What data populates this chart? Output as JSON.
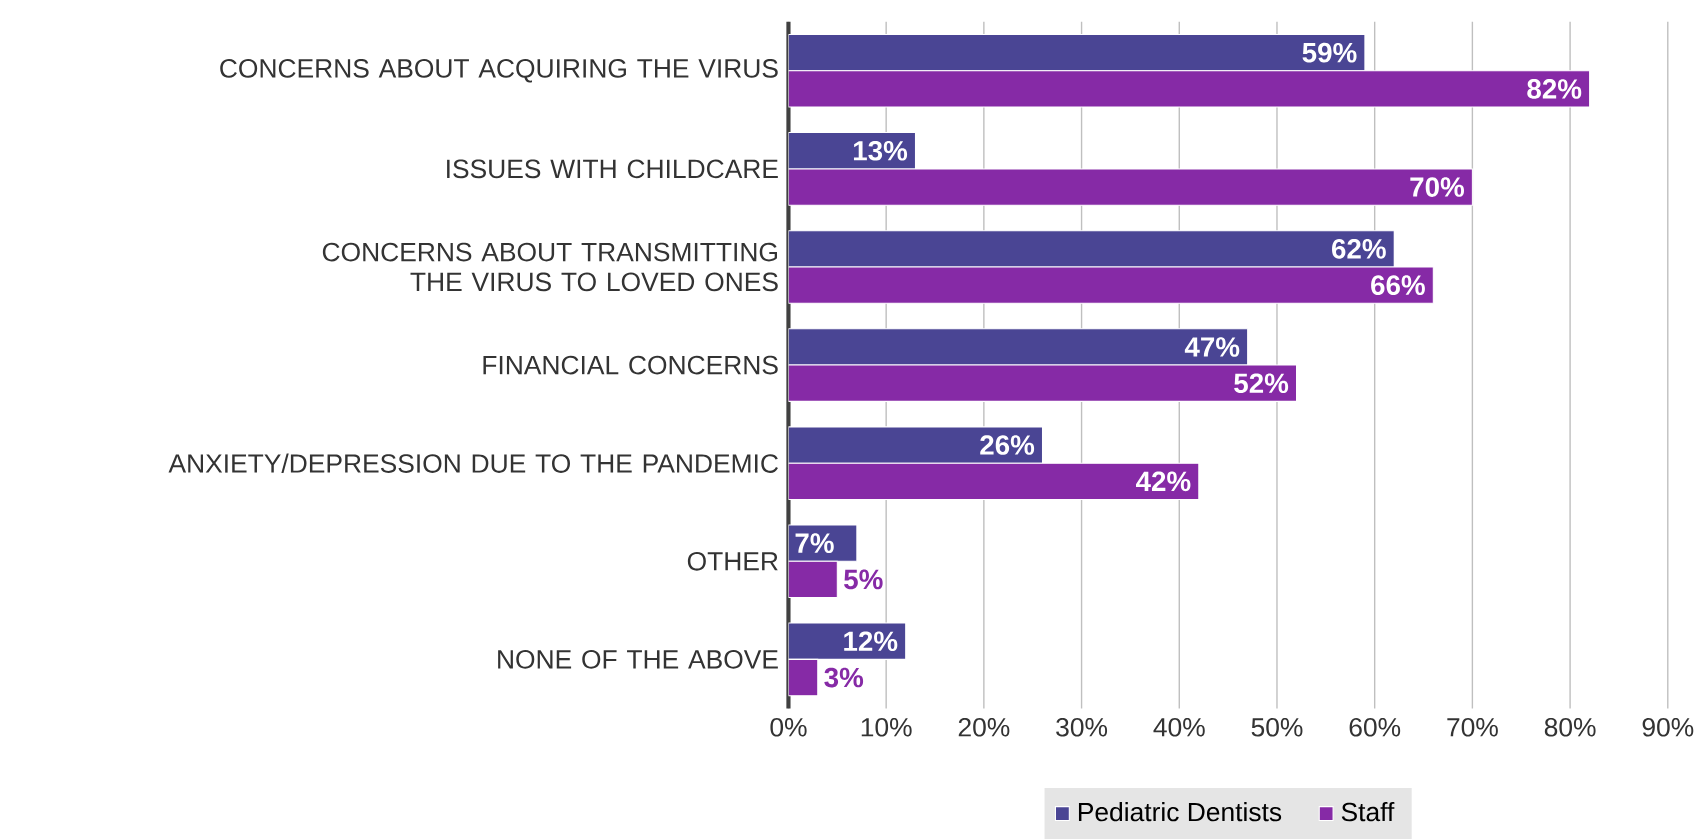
{
  "chart_data": {
    "type": "bar",
    "orientation": "horizontal",
    "categories": [
      "CONCERNS ABOUT ACQUIRING THE VIRUS",
      "ISSUES WITH CHILDCARE",
      "CONCERNS ABOUT TRANSMITTING THE VIRUS TO LOVED ONES",
      "FINANCIAL CONCERNS",
      "ANXIETY/DEPRESSION DUE TO THE PANDEMIC",
      "OTHER",
      "NONE OF THE ABOVE"
    ],
    "series": [
      {
        "name": "Pediatric Dentists",
        "color": "#4a4594",
        "values": [
          59,
          13,
          62,
          47,
          26,
          7,
          12
        ],
        "value_labels": [
          "59%",
          "13%",
          "62%",
          "47%",
          "26%",
          "7%",
          "12%"
        ]
      },
      {
        "name": "Staff",
        "color": "#862aa6",
        "values": [
          82,
          70,
          66,
          52,
          42,
          5,
          3
        ],
        "value_labels": [
          "82%",
          "70%",
          "66%",
          "52%",
          "42%",
          "5%",
          "3%"
        ]
      }
    ],
    "xlim": [
      0,
      90
    ],
    "xticks": [
      {
        "value": 0,
        "label": "0%"
      },
      {
        "value": 10,
        "label": "10%"
      },
      {
        "value": 20,
        "label": "20%"
      },
      {
        "value": 30,
        "label": "30%"
      },
      {
        "value": 40,
        "label": "40%"
      },
      {
        "value": 50,
        "label": "50%"
      },
      {
        "value": 60,
        "label": "60%"
      },
      {
        "value": 70,
        "label": "70%"
      },
      {
        "value": 80,
        "label": "80%"
      },
      {
        "value": 90,
        "label": "90%"
      }
    ],
    "grid": "x",
    "legend": "bottom"
  }
}
